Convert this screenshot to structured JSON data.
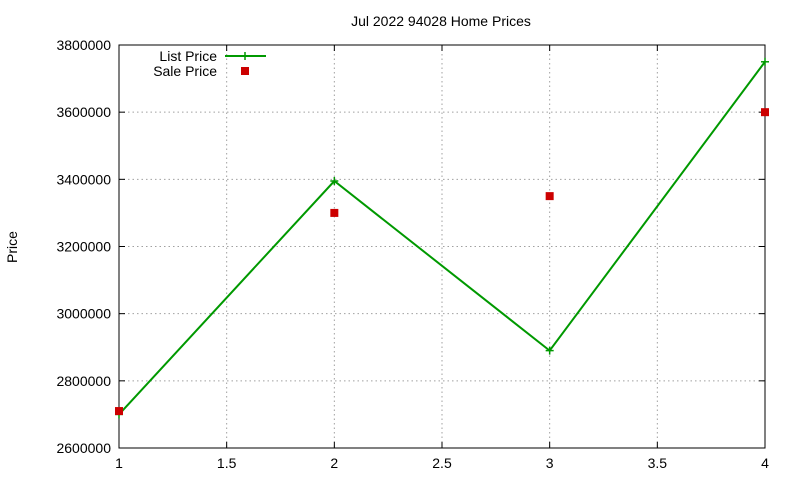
{
  "chart_data": {
    "type": "line",
    "title": "Jul 2022 94028 Home Prices",
    "xlabel": "",
    "ylabel": "Price",
    "xlim": [
      1,
      4
    ],
    "ylim": [
      2600000,
      3800000
    ],
    "x_ticks": [
      "1",
      "1.5",
      "2",
      "2.5",
      "3",
      "3.5",
      "4"
    ],
    "y_ticks": [
      "2600000",
      "2800000",
      "3000000",
      "3200000",
      "3400000",
      "3600000",
      "3800000"
    ],
    "grid": true,
    "legend_position": "top-left",
    "series": [
      {
        "name": "List Price",
        "style": "line-points",
        "color": "#009900",
        "x": [
          1,
          2,
          3,
          4
        ],
        "y": [
          2700000,
          3395000,
          2890000,
          3750000
        ]
      },
      {
        "name": "Sale Price",
        "style": "points",
        "color": "#cc0000",
        "x": [
          1,
          2,
          3,
          4
        ],
        "y": [
          2710000,
          3300000,
          3350000,
          3600000
        ]
      }
    ]
  }
}
